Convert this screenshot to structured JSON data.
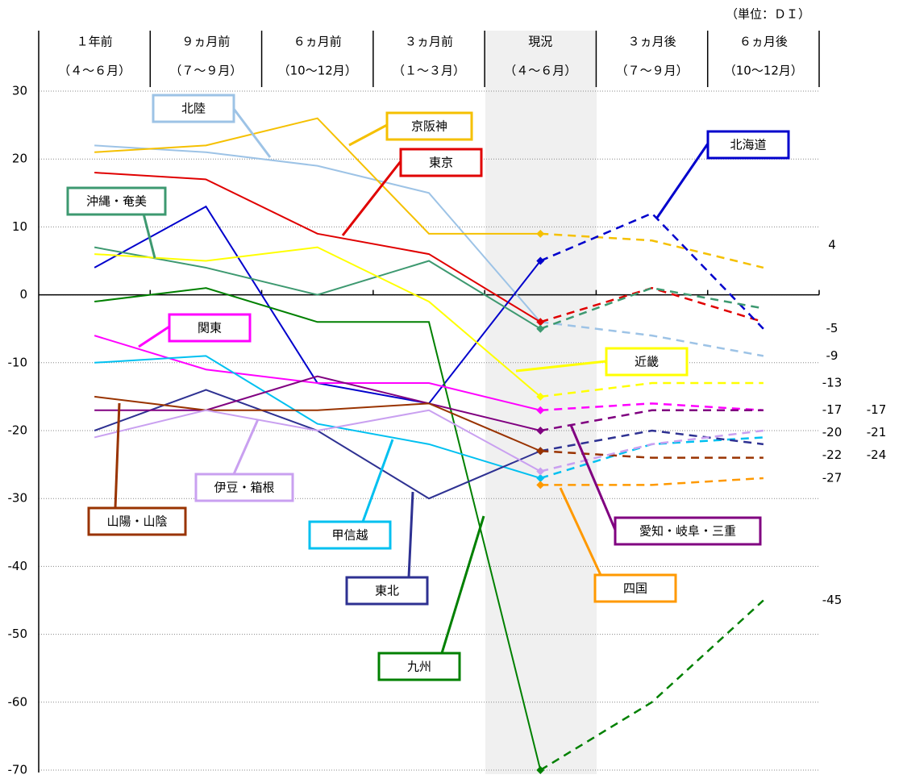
{
  "chart_data": {
    "type": "line",
    "unit_label": "（単位：ＤＩ）",
    "categories": [
      [
        "１年前",
        "（４～６月）"
      ],
      [
        "９ヵ月前",
        "（７～９月）"
      ],
      [
        "６ヵ月前",
        "（10～12月）"
      ],
      [
        "３ヵ月前",
        "（１～３月）"
      ],
      [
        "現況",
        "（４～６月）"
      ],
      [
        "３ヵ月後",
        "（７～９月）"
      ],
      [
        "６ヵ月後",
        "（10～12月）"
      ]
    ],
    "ylim": [
      -70,
      30
    ],
    "yticks": [
      30,
      20,
      10,
      0,
      -10,
      -20,
      -30,
      -40,
      -50,
      -60,
      -70
    ],
    "grid": true,
    "series": [
      {
        "name": "北陸",
        "color": "#9dc3e6",
        "values": [
          22,
          21,
          19,
          15,
          -4,
          -6,
          -9
        ]
      },
      {
        "name": "京阪神",
        "color": "#f5c000",
        "values": [
          21,
          22,
          26,
          9,
          9,
          8,
          4
        ]
      },
      {
        "name": "東京",
        "color": "#e00000",
        "values": [
          18,
          17,
          9,
          6,
          -4,
          1,
          -4
        ]
      },
      {
        "name": "北海道",
        "color": "#0000cc",
        "values": [
          4,
          13,
          -13,
          -16,
          5,
          12,
          -5
        ]
      },
      {
        "name": "沖縄・奄美",
        "color": "#3d9970",
        "values": [
          7,
          4,
          0,
          5,
          -5,
          1,
          -2
        ]
      },
      {
        "name": "近畿",
        "color": "#ffff00",
        "values": [
          6,
          5,
          7,
          -1,
          -15,
          -13,
          -13
        ]
      },
      {
        "name": "九州",
        "color": "#008000",
        "values": [
          -1,
          1,
          -4,
          -4,
          -70,
          -60,
          -45
        ]
      },
      {
        "name": "関東",
        "color": "#ff00ff",
        "values": [
          -6,
          -11,
          -13,
          -13,
          -17,
          -16,
          -17
        ]
      },
      {
        "name": "甲信越",
        "color": "#00c0f0",
        "values": [
          -10,
          -9,
          -19,
          -22,
          -27,
          -22,
          -21
        ]
      },
      {
        "name": "東北",
        "color": "#2e3192",
        "values": [
          -20,
          -14,
          -20,
          -30,
          -23,
          -20,
          -22
        ]
      },
      {
        "name": "愛知・岐阜・三重",
        "color": "#800080",
        "values": [
          -17,
          -17,
          -12,
          -16,
          -20,
          -17,
          -17
        ]
      },
      {
        "name": "山陽・山陰",
        "color": "#993300",
        "values": [
          -15,
          -17,
          -17,
          -16,
          -23,
          -24,
          -24
        ]
      },
      {
        "name": "伊豆・箱根",
        "color": "#c9a0f0",
        "values": [
          -21,
          -17,
          -20,
          -17,
          -26,
          -22,
          -20
        ]
      },
      {
        "name": "四国",
        "color": "#ff9900",
        "values": [
          null,
          null,
          null,
          null,
          -28,
          -28,
          -27
        ]
      }
    ],
    "end_labels": [
      4,
      -5,
      -9,
      -13,
      -17,
      -17,
      -20,
      -21,
      -22,
      -24,
      -27,
      -45
    ]
  }
}
